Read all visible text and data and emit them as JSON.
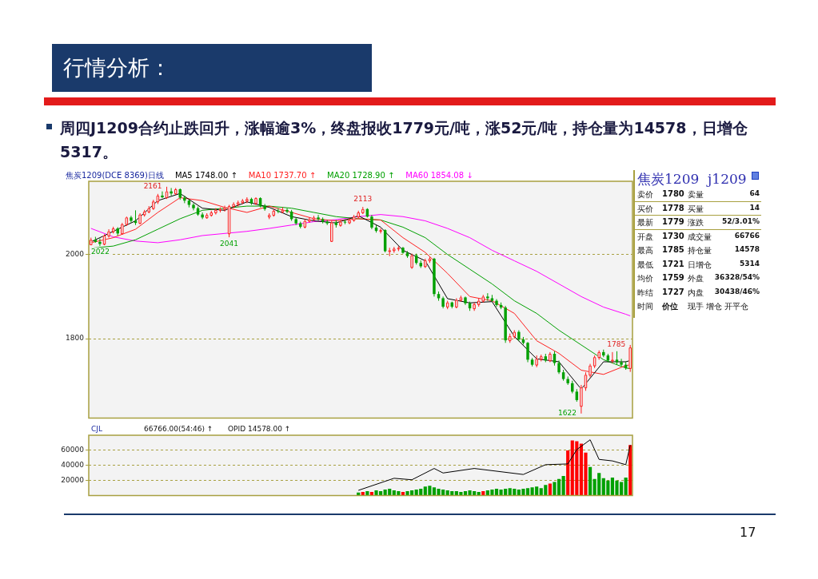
{
  "chart_data": [
    {
      "type": "candlestick",
      "title": "行情分析：",
      "subtitle": "周四J1209合约止跌回升，涨幅逾3%，终盘报收1779元/吨，涨52元/吨，持仓量为14578，日增仓5317。",
      "categories": [
        null,
        null,
        null,
        null,
        null,
        null,
        null,
        null,
        null,
        null,
        null,
        null,
        null,
        null,
        null,
        null,
        null,
        null,
        null,
        null,
        null,
        null,
        null,
        null,
        null,
        null,
        null,
        null,
        null,
        null,
        null,
        null,
        null,
        null,
        null,
        null,
        null,
        null,
        null,
        null,
        null,
        null,
        null,
        null,
        null,
        null,
        null,
        null,
        null,
        null,
        null,
        null,
        null,
        null,
        null,
        null,
        null,
        null,
        null,
        null,
        null,
        null,
        null,
        null,
        null,
        null,
        null,
        null,
        null,
        null,
        null,
        null,
        null,
        null,
        null,
        null,
        null,
        null,
        null,
        null,
        null,
        null,
        null,
        null,
        null,
        null,
        null,
        null,
        null,
        null,
        null,
        null,
        null,
        null,
        null,
        null,
        null,
        null,
        null,
        null,
        null,
        null,
        null,
        null,
        null,
        null,
        null,
        null,
        null,
        null,
        null,
        null,
        null,
        null,
        null,
        null,
        null,
        null,
        null,
        null,
        null,
        null
      ],
      "ohlc": [
        [
          2024,
          2040,
          2022,
          2035
        ],
        [
          2035,
          2042,
          2028,
          2030
        ],
        [
          2030,
          2038,
          2020,
          2025
        ],
        [
          2025,
          2048,
          2022,
          2045
        ],
        [
          2045,
          2060,
          2040,
          2055
        ],
        [
          2055,
          2066,
          2050,
          2062
        ],
        [
          2062,
          2065,
          2045,
          2050
        ],
        [
          2050,
          2075,
          2048,
          2072
        ],
        [
          2072,
          2090,
          2068,
          2088
        ],
        [
          2088,
          2092,
          2076,
          2080
        ],
        [
          2080,
          2105,
          2070,
          2075
        ],
        [
          2075,
          2098,
          2072,
          2095
        ],
        [
          2095,
          2106,
          2090,
          2102
        ],
        [
          2102,
          2115,
          2098,
          2110
        ],
        [
          2110,
          2130,
          2106,
          2126
        ],
        [
          2126,
          2144,
          2120,
          2140
        ],
        [
          2140,
          2150,
          2134,
          2136
        ],
        [
          2136,
          2161,
          2132,
          2150
        ],
        [
          2150,
          2158,
          2140,
          2145
        ],
        [
          2145,
          2158,
          2142,
          2155
        ],
        [
          2155,
          2157,
          2130,
          2135
        ],
        [
          2135,
          2140,
          2122,
          2128
        ],
        [
          2128,
          2130,
          2112,
          2118
        ],
        [
          2118,
          2122,
          2105,
          2110
        ],
        [
          2110,
          2114,
          2092,
          2095
        ],
        [
          2095,
          2100,
          2084,
          2088
        ],
        [
          2088,
          2098,
          2085,
          2094
        ],
        [
          2094,
          2104,
          2090,
          2100
        ],
        [
          2100,
          2110,
          2095,
          2106
        ],
        [
          2106,
          2112,
          2100,
          2108
        ],
        [
          2108,
          2116,
          2102,
          2112
        ],
        [
          2050,
          2118,
          2041,
          2115
        ],
        [
          2115,
          2124,
          2110,
          2120
        ],
        [
          2120,
          2128,
          2114,
          2124
        ],
        [
          2124,
          2132,
          2120,
          2128
        ],
        [
          2128,
          2136,
          2122,
          2132
        ],
        [
          2132,
          2135,
          2118,
          2122
        ],
        [
          2122,
          2136,
          2118,
          2134
        ],
        [
          2134,
          2136,
          2112,
          2116
        ],
        [
          2116,
          2120,
          2104,
          2108
        ],
        [
          2090,
          2098,
          2084,
          2094
        ],
        [
          2094,
          2108,
          2090,
          2104
        ],
        [
          2104,
          2110,
          2098,
          2102
        ],
        [
          2102,
          2112,
          2098,
          2106
        ],
        [
          2106,
          2110,
          2098,
          2102
        ],
        [
          2102,
          2106,
          2080,
          2084
        ],
        [
          2084,
          2088,
          2070,
          2074
        ],
        [
          2074,
          2078,
          2062,
          2066
        ],
        [
          2066,
          2084,
          2062,
          2080
        ],
        [
          2080,
          2088,
          2076,
          2084
        ],
        [
          2084,
          2092,
          2080,
          2088
        ],
        [
          2088,
          2094,
          2080,
          2084
        ],
        [
          2084,
          2088,
          2074,
          2078
        ],
        [
          2078,
          2082,
          2070,
          2074
        ],
        [
          2032,
          2080,
          2030,
          2076
        ],
        [
          2076,
          2082,
          2064,
          2070
        ],
        [
          2070,
          2082,
          2066,
          2078
        ],
        [
          2078,
          2084,
          2072,
          2076
        ],
        [
          2076,
          2086,
          2072,
          2082
        ],
        [
          2082,
          2094,
          2078,
          2090
        ],
        [
          2090,
          2104,
          2086,
          2100
        ],
        [
          2100,
          2113,
          2096,
          2108
        ],
        [
          2108,
          2110,
          2088,
          2090
        ],
        [
          2090,
          2094,
          2060,
          2064
        ],
        [
          2064,
          2070,
          2052,
          2056
        ],
        [
          2056,
          2062,
          2050,
          2058
        ],
        [
          2058,
          2060,
          2005,
          2008
        ],
        [
          2008,
          2016,
          1996,
          2010
        ],
        [
          2010,
          2018,
          2004,
          2014
        ],
        [
          2014,
          2020,
          2008,
          2016
        ],
        [
          2016,
          2018,
          2002,
          2004
        ],
        [
          2004,
          2008,
          1992,
          1996
        ],
        [
          1970,
          2002,
          1966,
          1998
        ],
        [
          1998,
          2002,
          1976,
          1980
        ],
        [
          1980,
          1986,
          1968,
          1972
        ],
        [
          1972,
          1990,
          1968,
          1986
        ],
        [
          1986,
          1994,
          1980,
          1990
        ],
        [
          1990,
          1992,
          1900,
          1906
        ],
        [
          1906,
          1912,
          1890,
          1896
        ],
        [
          1896,
          1900,
          1872,
          1876
        ],
        [
          1876,
          1890,
          1870,
          1886
        ],
        [
          1886,
          1888,
          1872,
          1876
        ],
        [
          1876,
          1896,
          1872,
          1892
        ],
        [
          1892,
          1902,
          1888,
          1898
        ],
        [
          1898,
          1900,
          1880,
          1884
        ],
        [
          1884,
          1888,
          1866,
          1872
        ],
        [
          1872,
          1886,
          1866,
          1882
        ],
        [
          1882,
          1896,
          1876,
          1890
        ],
        [
          1890,
          1904,
          1886,
          1900
        ],
        [
          1900,
          1908,
          1890,
          1896
        ],
        [
          1896,
          1904,
          1888,
          1890
        ],
        [
          1890,
          1894,
          1876,
          1880
        ],
        [
          1880,
          1886,
          1870,
          1874
        ],
        [
          1874,
          1878,
          1790,
          1796
        ],
        [
          1796,
          1812,
          1790,
          1806
        ],
        [
          1806,
          1820,
          1800,
          1816
        ],
        [
          1816,
          1820,
          1794,
          1798
        ],
        [
          1798,
          1804,
          1786,
          1790
        ],
        [
          1790,
          1792,
          1744,
          1750
        ],
        [
          1750,
          1754,
          1734,
          1738
        ],
        [
          1738,
          1760,
          1732,
          1752
        ],
        [
          1752,
          1762,
          1746,
          1758
        ],
        [
          1758,
          1764,
          1744,
          1748
        ],
        [
          1748,
          1768,
          1744,
          1764
        ],
        [
          1764,
          1770,
          1736,
          1742
        ],
        [
          1742,
          1748,
          1716,
          1720
        ],
        [
          1720,
          1726,
          1700,
          1704
        ],
        [
          1704,
          1710,
          1690,
          1694
        ],
        [
          1694,
          1700,
          1670,
          1674
        ],
        [
          1674,
          1680,
          1650,
          1654
        ],
        [
          1640,
          1690,
          1622,
          1684
        ],
        [
          1684,
          1720,
          1676,
          1714
        ],
        [
          1714,
          1740,
          1708,
          1736
        ],
        [
          1736,
          1760,
          1730,
          1756
        ],
        [
          1756,
          1772,
          1750,
          1768
        ],
        [
          1768,
          1774,
          1756,
          1760
        ],
        [
          1760,
          1764,
          1744,
          1748
        ],
        [
          1748,
          1768,
          1742,
          1750
        ],
        [
          1750,
          1770,
          1738,
          1744
        ],
        [
          1744,
          1752,
          1734,
          1738
        ],
        [
          1738,
          1746,
          1726,
          1730
        ],
        [
          1730,
          1785,
          1721,
          1779
        ]
      ],
      "series": [
        {
          "type": "line",
          "name": "MA5 1748.00 ↑",
          "color": "#000000",
          "values": [
            2030,
            null,
            null,
            null,
            null,
            2055,
            null,
            null,
            null,
            null,
            2080,
            null,
            null,
            null,
            null,
            2128,
            null,
            null,
            null,
            null,
            2145,
            null,
            null,
            null,
            null,
            2110,
            null,
            null,
            null,
            null,
            2105,
            null,
            null,
            null,
            null,
            2125,
            null,
            null,
            null,
            null,
            2112,
            null,
            null,
            null,
            null,
            2090,
            null,
            null,
            null,
            null,
            2080,
            null,
            null,
            null,
            null,
            2075,
            null,
            null,
            null,
            null,
            2092,
            null,
            null,
            null,
            null,
            2065,
            null,
            null,
            null,
            null,
            2010,
            null,
            null,
            null,
            null,
            1985,
            null,
            null,
            null,
            null,
            1895,
            null,
            null,
            null,
            null,
            1885,
            null,
            null,
            null,
            null,
            1888,
            null,
            null,
            null,
            null,
            1805,
            null,
            null,
            null,
            null,
            1752,
            null,
            null,
            null,
            null,
            1745,
            null,
            null,
            null,
            null,
            1680,
            null,
            null,
            null,
            null,
            1745,
            null,
            null,
            null,
            null,
            1745,
            1748
          ]
        },
        {
          "type": "line",
          "name": "MA10 1737.70 ↑",
          "color": "#ff2020",
          "values": [
            2028,
            null,
            null,
            null,
            null,
            2040,
            null,
            null,
            null,
            null,
            2060,
            null,
            null,
            null,
            null,
            2100,
            null,
            null,
            null,
            null,
            2135,
            null,
            null,
            null,
            null,
            2128,
            null,
            null,
            null,
            null,
            2112,
            null,
            null,
            null,
            null,
            2100,
            null,
            null,
            null,
            null,
            2115,
            null,
            null,
            null,
            null,
            2100,
            null,
            null,
            null,
            null,
            2085,
            null,
            null,
            null,
            null,
            2080,
            null,
            null,
            null,
            null,
            2085,
            null,
            null,
            null,
            null,
            2082,
            null,
            null,
            null,
            null,
            2040,
            null,
            null,
            null,
            null,
            2005,
            null,
            null,
            null,
            null,
            1955,
            null,
            null,
            null,
            null,
            1900,
            null,
            null,
            null,
            null,
            1890,
            null,
            null,
            null,
            null,
            1860,
            null,
            null,
            null,
            null,
            1795,
            null,
            null,
            null,
            null,
            1765,
            null,
            null,
            null,
            null,
            1725,
            null,
            null,
            null,
            null,
            1715,
            null,
            null,
            null,
            null,
            1736,
            1737.7
          ]
        },
        {
          "type": "line",
          "name": "MA20 1728.90 ↑",
          "color": "#00a000",
          "values": [
            2015,
            null,
            null,
            null,
            null,
            2020,
            null,
            null,
            null,
            null,
            2035,
            null,
            null,
            null,
            null,
            2060,
            null,
            null,
            null,
            null,
            2085,
            null,
            null,
            null,
            null,
            2105,
            null,
            null,
            null,
            null,
            2110,
            null,
            null,
            null,
            null,
            2115,
            null,
            null,
            null,
            null,
            2115,
            null,
            null,
            null,
            null,
            2110,
            null,
            null,
            null,
            null,
            2100,
            null,
            null,
            null,
            null,
            2090,
            null,
            null,
            null,
            null,
            2085,
            null,
            null,
            null,
            null,
            2082,
            null,
            null,
            null,
            null,
            2065,
            null,
            null,
            null,
            null,
            2040,
            null,
            null,
            null,
            null,
            2000,
            null,
            null,
            null,
            null,
            1965,
            null,
            null,
            null,
            null,
            1930,
            null,
            null,
            null,
            null,
            1890,
            null,
            null,
            null,
            null,
            1860,
            null,
            null,
            null,
            null,
            1820,
            null,
            null,
            null,
            null,
            1785,
            null,
            null,
            null,
            null,
            1750,
            null,
            null,
            null,
            null,
            1730,
            1728.9
          ]
        },
        {
          "type": "line",
          "name": "MA60 1854.08 ↓",
          "color": "#ff00ff",
          "values": [
            2062,
            null,
            null,
            null,
            null,
            2042,
            null,
            null,
            null,
            null,
            2032,
            null,
            null,
            null,
            null,
            2028,
            null,
            null,
            null,
            null,
            2035,
            null,
            null,
            null,
            null,
            2045,
            null,
            null,
            null,
            null,
            2050,
            null,
            null,
            null,
            null,
            2055,
            null,
            null,
            null,
            null,
            2062,
            null,
            null,
            null,
            null,
            2070,
            null,
            null,
            null,
            null,
            2078,
            null,
            null,
            null,
            null,
            2083,
            null,
            null,
            null,
            null,
            2090,
            null,
            null,
            null,
            null,
            2095,
            null,
            null,
            null,
            null,
            2090,
            null,
            null,
            null,
            null,
            2080,
            null,
            null,
            null,
            null,
            2062,
            null,
            null,
            null,
            null,
            2040,
            null,
            null,
            null,
            null,
            2010,
            null,
            null,
            null,
            null,
            1985,
            null,
            null,
            null,
            null,
            1960,
            null,
            null,
            null,
            null,
            1930,
            null,
            null,
            null,
            null,
            1900,
            null,
            null,
            null,
            null,
            1875,
            null,
            null,
            null,
            null,
            1858,
            1854.08
          ]
        }
      ],
      "ylim": [
        1611,
        2174
      ],
      "yticks": [
        1800,
        2000
      ],
      "grid": "y",
      "legend": "top",
      "annotations": [
        "焦炭1209(DCE 8369)日线",
        {
          "text": "2161",
          "y": 2161
        },
        {
          "text": "2041",
          "y": 2041
        },
        {
          "text": "2022",
          "y": 2022
        },
        {
          "text": "2113",
          "y": 2113
        },
        {
          "text": "1622",
          "y": 1622
        },
        {
          "text": "1785",
          "y": 1785
        },
        "17"
      ]
    },
    {
      "type": "bar",
      "categories": [
        null,
        null,
        null,
        null,
        null,
        null,
        null,
        null,
        null,
        null,
        null,
        null,
        null,
        null,
        null,
        null,
        null,
        null,
        null,
        null,
        null,
        null,
        null,
        null,
        null,
        null,
        null,
        null,
        null,
        null,
        null,
        null,
        null,
        null,
        null,
        null,
        null,
        null,
        null,
        null,
        null,
        null,
        null,
        null,
        null,
        null,
        null,
        null,
        null,
        null,
        null,
        null,
        null,
        null,
        null,
        null,
        null,
        null,
        null,
        null,
        null,
        null,
        null,
        null,
        null,
        null,
        null,
        null,
        null,
        null,
        null,
        null,
        null,
        null,
        null,
        null,
        null,
        null,
        null,
        null,
        null,
        null,
        null,
        null,
        null,
        null,
        null,
        null,
        null,
        null,
        null,
        null,
        null,
        null,
        null,
        null,
        null,
        null,
        null,
        null,
        null,
        null,
        null,
        null,
        null,
        null,
        null,
        null,
        null,
        null,
        null,
        null,
        null,
        null,
        null,
        null,
        null,
        null,
        null,
        null,
        null,
        null
      ],
      "series": [
        {
          "color": "#ff0000",
          "values": [
            null,
            null,
            null,
            null,
            null,
            null,
            null,
            null,
            null,
            null,
            null,
            null,
            null,
            null,
            null,
            null,
            null,
            null,
            null,
            null,
            null,
            null,
            null,
            null,
            null,
            null,
            null,
            null,
            null,
            null,
            null,
            null,
            null,
            null,
            null,
            null,
            null,
            null,
            null,
            null,
            null,
            null,
            null,
            null,
            null,
            null,
            null,
            null,
            null,
            null,
            null,
            null,
            null,
            null,
            null,
            null,
            null,
            null,
            null,
            null,
            null,
            5000,
            null,
            5000,
            null,
            null,
            null,
            null,
            null,
            null,
            5000,
            null,
            null,
            null,
            null,
            null,
            null,
            null,
            null,
            null,
            null,
            null,
            null,
            null,
            null,
            null,
            null,
            null,
            6000,
            null,
            null,
            null,
            null,
            null,
            null,
            null,
            null,
            null,
            null,
            null,
            null,
            null,
            null,
            16000,
            null,
            null,
            null,
            60000,
            73000,
            72000,
            69000,
            57000,
            null,
            null,
            null,
            null,
            null,
            null,
            null,
            null,
            null,
            67000
          ]
        },
        {
          "color": "#00a000",
          "values": [
            null,
            null,
            null,
            null,
            null,
            null,
            null,
            null,
            null,
            null,
            null,
            null,
            null,
            null,
            null,
            null,
            null,
            null,
            null,
            null,
            null,
            null,
            null,
            null,
            null,
            null,
            null,
            null,
            null,
            null,
            null,
            null,
            null,
            null,
            null,
            null,
            null,
            null,
            null,
            null,
            null,
            null,
            null,
            null,
            null,
            null,
            null,
            null,
            null,
            null,
            null,
            null,
            null,
            null,
            null,
            null,
            null,
            null,
            null,
            null,
            4000,
            null,
            6000,
            null,
            7000,
            6000,
            8000,
            9000,
            7000,
            6000,
            null,
            6000,
            7000,
            8000,
            9000,
            12000,
            13000,
            11000,
            9000,
            8000,
            7000,
            6000,
            6000,
            5000,
            6000,
            7000,
            6000,
            5000,
            null,
            7000,
            8000,
            9000,
            8000,
            9000,
            10000,
            9000,
            8000,
            9000,
            10000,
            11000,
            12000,
            10000,
            14000,
            null,
            18000,
            22000,
            26000,
            null,
            null,
            null,
            null,
            null,
            38000,
            22000,
            30000,
            23000,
            20000,
            24000,
            20000,
            18000,
            24000,
            null
          ]
        },
        {
          "type": "line",
          "color": "#000000",
          "values": [
            null,
            null,
            null,
            null,
            null,
            null,
            null,
            null,
            null,
            null,
            null,
            null,
            null,
            null,
            null,
            null,
            null,
            null,
            null,
            null,
            null,
            null,
            null,
            null,
            null,
            null,
            null,
            null,
            null,
            null,
            null,
            null,
            null,
            null,
            null,
            null,
            null,
            null,
            null,
            null,
            null,
            null,
            null,
            null,
            null,
            null,
            null,
            null,
            null,
            null,
            null,
            null,
            null,
            null,
            null,
            null,
            null,
            null,
            null,
            null,
            7000,
            null,
            null,
            null,
            null,
            null,
            null,
            null,
            23000,
            null,
            null,
            null,
            21000,
            null,
            null,
            null,
            null,
            36000,
            null,
            30000,
            null,
            null,
            null,
            null,
            null,
            null,
            36000,
            null,
            null,
            null,
            null,
            null,
            null,
            null,
            null,
            null,
            null,
            28000,
            null,
            null,
            null,
            null,
            41000,
            null,
            null,
            null,
            null,
            42000,
            null,
            61000,
            null,
            null,
            74000,
            null,
            48000,
            null,
            null,
            46000,
            null,
            null,
            41000,
            67000
          ]
        }
      ],
      "ylim": [
        0,
        80000
      ],
      "yticks": [
        20000,
        40000,
        60000
      ],
      "grid": "y",
      "annotations": [
        "CJL",
        "66766.00(54:46) ↑",
        "OPID 14578.00 ↑"
      ]
    },
    {
      "type": "other",
      "title": "焦炭1209  j1209",
      "annotations": [
        "卖价",
        "1780",
        "卖量",
        "64",
        "买价",
        "1778",
        "买量",
        "14",
        "最新",
        "1779",
        "涨跌",
        "52/3.01%",
        "开盘",
        "1730",
        "成交量",
        "66766",
        "最高",
        "1785",
        "持仓量",
        "14578",
        "最低",
        "1721",
        "日增仓",
        "5314",
        "均价",
        "1759",
        "外盘",
        "36328/54%",
        "昨结",
        "1727",
        "内盘",
        "30438/46%",
        "时间",
        "价位",
        "现手 增仓 开平仓"
      ]
    }
  ]
}
